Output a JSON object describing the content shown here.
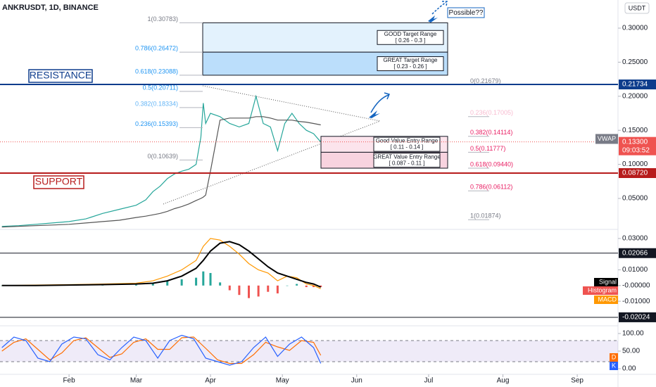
{
  "header": {
    "symbol": "ANKRUSDT, 1D, BINANCE",
    "currency": "USDT"
  },
  "chart_data": [
    {
      "type": "line",
      "x": [
        3,
        10,
        17,
        24,
        31,
        38,
        45,
        52,
        59,
        63,
        66,
        69,
        72,
        75,
        78,
        81,
        84,
        86,
        87,
        88,
        90,
        94,
        98,
        102,
        106,
        109,
        112,
        115,
        118,
        121,
        124,
        127,
        130,
        133,
        136
      ],
      "xlim": [
        2.2,
        260
      ],
      "xticks": [
        {
          "value": 31,
          "label": "Feb"
        },
        {
          "value": 59,
          "label": "Mar"
        },
        {
          "value": 90,
          "label": "Apr"
        },
        {
          "value": 120,
          "label": "May"
        },
        {
          "value": 151,
          "label": "Jun"
        },
        {
          "value": 181,
          "label": "Jul"
        },
        {
          "value": 212,
          "label": "Aug"
        },
        {
          "value": 243,
          "label": "Sep"
        }
      ],
      "ylim": [
        0.0056,
        0.3413
      ],
      "yticks": [
        {
          "value": 0.3,
          "label": "0.30000"
        },
        {
          "value": 0.25,
          "label": "0.25000"
        },
        {
          "value": 0.2,
          "label": "0.20000"
        },
        {
          "value": 0.15,
          "label": "0.15000"
        },
        {
          "value": 0.1,
          "label": "0.10000"
        },
        {
          "value": 0.05,
          "label": "0.05000"
        }
      ],
      "series": [
        {
          "color": "#26a69a",
          "values": [
            0.009,
            0.01,
            0.012,
            0.014,
            0.016,
            0.02,
            0.028,
            0.034,
            0.04,
            0.048,
            0.06,
            0.068,
            0.079,
            0.086,
            0.09,
            0.093,
            0.1,
            0.14,
            0.19,
            0.16,
            0.175,
            0.17,
            0.16,
            0.155,
            0.16,
            0.2,
            0.16,
            0.155,
            0.12,
            0.16,
            0.175,
            0.16,
            0.15,
            0.145,
            0.133
          ]
        },
        {
          "name": "VWAP",
          "color": "#555555",
          "values": [
            0.008,
            0.009,
            0.01,
            0.011,
            0.012,
            0.014,
            0.016,
            0.018,
            0.022,
            0.024,
            0.026,
            0.028,
            0.031,
            0.035,
            0.038,
            0.042,
            0.047,
            0.05,
            0.052,
            0.055,
            0.09,
            0.165,
            0.168,
            0.168,
            0.168,
            0.17,
            0.17,
            0.168,
            0.165,
            0.165,
            0.165,
            0.163,
            0.162,
            0.16,
            0.158
          ]
        }
      ],
      "fib_left": [
        {
          "value": 0.30783,
          "label": "1(0.30783)",
          "color": "#787b86"
        },
        {
          "value": 0.26472,
          "label": "0.786(0.26472)",
          "color": "#2196f3"
        },
        {
          "value": 0.23088,
          "label": "0.618(0.23088)",
          "color": "#2196f3"
        },
        {
          "value": 0.20711,
          "label": "0.5(0.20711)",
          "color": "#2196f3"
        },
        {
          "value": 0.18334,
          "label": "0.382(0.18334)",
          "color": "#64b5f6"
        },
        {
          "value": 0.15393,
          "label": "0.236(0.15393)",
          "color": "#2196f3"
        },
        {
          "value": 0.10639,
          "label": "0(0.10639)",
          "color": "#787b86"
        }
      ],
      "fib_right": [
        {
          "value": 0.21679,
          "label": "0(0.21679)",
          "color": "#787b86"
        },
        {
          "value": 0.17005,
          "label": "0.236(0.17005)",
          "color": "#f8bbd0"
        },
        {
          "value": 0.14114,
          "label": "0.382(0.14114)",
          "color": "#e91e63"
        },
        {
          "value": 0.11777,
          "label": "0.5(0.11777)",
          "color": "#e91e63"
        },
        {
          "value": 0.0944,
          "label": "0.618(0.09440)",
          "color": "#e91e63"
        },
        {
          "value": 0.06112,
          "label": "0.786(0.06112)",
          "color": "#e91e63"
        },
        {
          "value": 0.01874,
          "label": "1(0.01874)",
          "color": "#787b86"
        }
      ],
      "ranges": [
        {
          "title": "GOOD Target Range",
          "text": "[ 0.26 - 0.3 ]"
        },
        {
          "title": "GREAT Target Range",
          "text": "[ 0.23 - 0.26 ]"
        },
        {
          "title": "Good Value Entry Range",
          "text": "[ 0.11 - 0.14 ]"
        },
        {
          "title": "GREAT Value Entry Range",
          "text": "[ 0.087 - 0.11 ]"
        }
      ],
      "levels": [
        {
          "name": "RESISTANCE",
          "value": 0.21734,
          "color": "#0d3c8c"
        },
        {
          "name": "SUPPORT",
          "value": 0.0872,
          "value_label": "0.08720",
          "color": "#b71c1c"
        }
      ],
      "last_price": 0.133,
      "last_price_label": "0.13300",
      "countdown": "09:03:52",
      "annotation": "Possible??"
    },
    {
      "type": "line",
      "x": [
        3,
        17,
        31,
        45,
        59,
        66,
        72,
        78,
        84,
        87,
        90,
        94,
        98,
        102,
        106,
        110,
        114,
        118,
        122,
        126,
        130,
        133,
        136
      ],
      "ylim": [
        -0.0252,
        0.0349
      ],
      "yticks": [
        {
          "value": 0.03,
          "label": "0.03000"
        },
        {
          "value": 0.01,
          "label": "0.01000"
        },
        {
          "value": 0,
          "label": "-0.00000"
        },
        {
          "value": -0.01,
          "label": "-0.01000"
        }
      ],
      "levels": [
        0.02066,
        -0.02024
      ],
      "series": [
        {
          "name": "Histogram",
          "color": "#ef5350",
          "positive_color": "#26a69a",
          "kind": "bar",
          "values": [
            0,
            0.0003,
            0.0003,
            0.0004,
            0.0005,
            0.0015,
            0.003,
            0.004,
            0.005,
            0.009,
            0.008,
            0.002,
            -0.003,
            -0.006,
            -0.008,
            -0.007,
            -0.004,
            -0.005,
            0,
            0.001,
            -0.001,
            -0.001,
            -0.001
          ]
        },
        {
          "name": "MACD",
          "color": "#ff9800",
          "values": [
            0,
            0.0003,
            0.0006,
            0.001,
            0.0015,
            0.003,
            0.006,
            0.01,
            0.016,
            0.025,
            0.03,
            0.029,
            0.025,
            0.02,
            0.014,
            0.01,
            0.008,
            0.003,
            0.006,
            0.005,
            0.001,
            0,
            -0.002
          ]
        },
        {
          "name": "Signal",
          "color": "#000000",
          "values": [
            0,
            0,
            0.0003,
            0.0006,
            0.001,
            0.0015,
            0.003,
            0.006,
            0.011,
            0.016,
            0.022,
            0.027,
            0.028,
            0.026,
            0.022,
            0.017,
            0.012,
            0.008,
            0.006,
            0.004,
            0.002,
            0.001,
            -0.001
          ]
        }
      ]
    },
    {
      "type": "line",
      "x": [
        3,
        8,
        13,
        18,
        23,
        28,
        33,
        38,
        43,
        48,
        53,
        58,
        63,
        68,
        73,
        78,
        83,
        88,
        93,
        98,
        103,
        108,
        113,
        118,
        123,
        128,
        133,
        136
      ],
      "ylim": [
        -16,
        118
      ],
      "yticks": [
        {
          "value": 100,
          "label": "100.00"
        },
        {
          "value": 50,
          "label": "50.00"
        },
        {
          "value": 0,
          "label": "0.00"
        }
      ],
      "bands": [
        80,
        20
      ],
      "series": [
        {
          "name": "D",
          "color": "#ff6d00",
          "values": [
            50,
            75,
            85,
            55,
            25,
            45,
            80,
            88,
            60,
            32,
            42,
            75,
            85,
            55,
            55,
            88,
            90,
            58,
            25,
            15,
            15,
            40,
            75,
            62,
            52,
            80,
            75,
            38
          ]
        },
        {
          "name": "K",
          "color": "#2962ff",
          "values": [
            60,
            90,
            80,
            30,
            20,
            70,
            90,
            85,
            40,
            25,
            60,
            90,
            80,
            30,
            80,
            95,
            85,
            30,
            20,
            10,
            20,
            60,
            90,
            35,
            70,
            90,
            60,
            15
          ]
        }
      ]
    }
  ]
}
